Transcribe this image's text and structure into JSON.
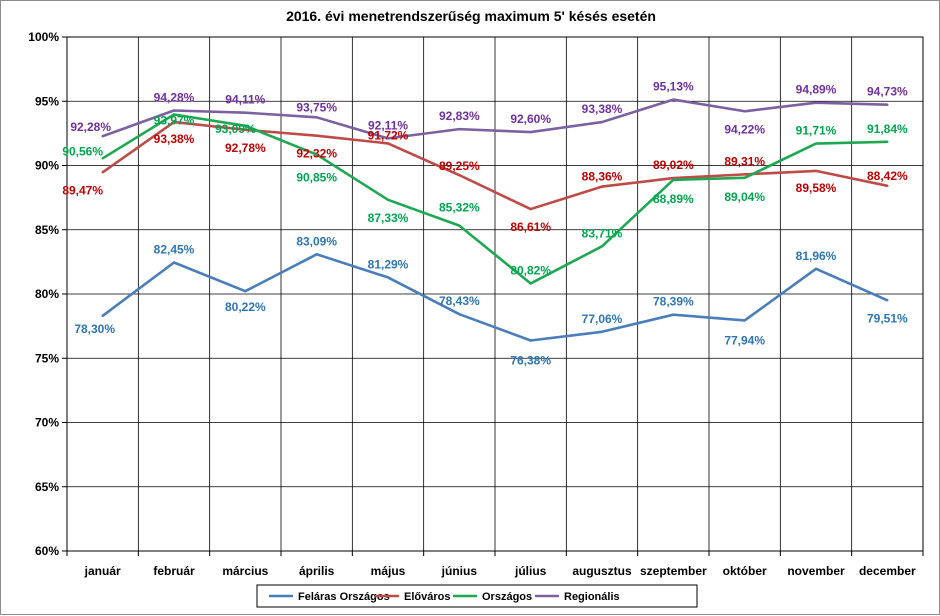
{
  "chart_data": {
    "type": "line",
    "title": "2016. évi menetrendszerűség maximum 5' késés esetén",
    "xlabel": "",
    "ylabel": "",
    "ylim": [
      60,
      100
    ],
    "y_ticks": [
      60,
      65,
      70,
      75,
      80,
      85,
      90,
      95,
      100
    ],
    "y_tick_labels": [
      "60%",
      "65%",
      "70%",
      "75%",
      "80%",
      "85%",
      "90%",
      "95%",
      "100%"
    ],
    "grid": true,
    "legend_position": "bottom",
    "categories": [
      "január",
      "február",
      "március",
      "április",
      "május",
      "június",
      "július",
      "augusztus",
      "szeptember",
      "október",
      "november",
      "december"
    ],
    "series": [
      {
        "name": "Feláras Országos",
        "color": "#4a7ebb",
        "label_color": "#2e75b6",
        "values": [
          78.3,
          82.45,
          80.22,
          83.09,
          81.29,
          78.43,
          76.38,
          77.06,
          78.39,
          77.94,
          81.96,
          79.51
        ],
        "labels": [
          "78,30%",
          "82,45%",
          "80,22%",
          "83,09%",
          "81,29%",
          "78,43%",
          "76,38%",
          "77,06%",
          "78,39%",
          "77,94%",
          "81,96%",
          "79,51%"
        ]
      },
      {
        "name": "Előváros",
        "color": "#be4b48",
        "label_color": "#c00000",
        "values": [
          89.47,
          93.38,
          92.78,
          92.32,
          91.72,
          89.25,
          86.61,
          88.36,
          89.02,
          89.31,
          89.58,
          88.42
        ],
        "labels": [
          "89,47%",
          "93,38%",
          "92,78%",
          "92,32%",
          "91,72%",
          "89,25%",
          "86,61%",
          "88,36%",
          "89,02%",
          "89,31%",
          "89,58%",
          "88,42%"
        ]
      },
      {
        "name": "Országos",
        "color": "#1fa852",
        "label_color": "#00a550",
        "values": [
          90.56,
          93.97,
          93.09,
          90.85,
          87.33,
          85.32,
          80.82,
          83.71,
          88.89,
          89.04,
          91.71,
          91.84
        ],
        "labels": [
          "90,56%",
          "93,97%",
          "93,09%",
          "90,85%",
          "87,33%",
          "85,32%",
          "80,82%",
          "83,71%",
          "88,89%",
          "89,04%",
          "91,71%",
          "91,84%"
        ]
      },
      {
        "name": "Regionális",
        "color": "#7d60a0",
        "label_color": "#7030a0",
        "values": [
          92.28,
          94.28,
          94.11,
          93.75,
          92.11,
          92.83,
          92.6,
          93.38,
          95.13,
          94.22,
          94.89,
          94.73
        ],
        "labels": [
          "92,28%",
          "94,28%",
          "94,11%",
          "93,75%",
          "92,11%",
          "92,83%",
          "92,60%",
          "93,38%",
          "95,13%",
          "94,22%",
          "94,89%",
          "94,73%"
        ]
      }
    ]
  }
}
